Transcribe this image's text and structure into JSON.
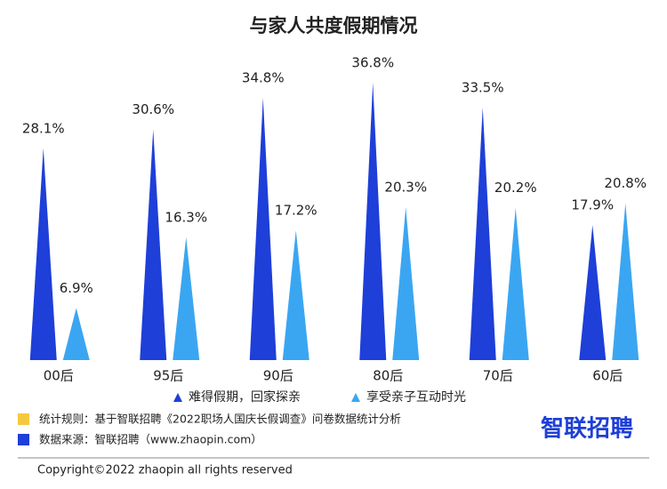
{
  "chart_data": {
    "type": "spike",
    "title": "与家人共度假期情况",
    "categories": [
      "00后",
      "95后",
      "90后",
      "80后",
      "70后",
      "60后"
    ],
    "series": [
      {
        "name": "难得假期，回家探亲",
        "color": "#1e3fd8",
        "values": [
          28.1,
          30.6,
          34.8,
          36.8,
          33.5,
          17.9
        ],
        "value_labels": [
          "28.1%",
          "30.6%",
          "34.8%",
          "36.8%",
          "33.5%",
          "17.9%"
        ]
      },
      {
        "name": "享受亲子互动时光",
        "color": "#3aa6f2",
        "values": [
          6.9,
          16.3,
          17.2,
          20.3,
          20.2,
          20.8
        ],
        "value_labels": [
          "6.9%",
          "16.3%",
          "17.2%",
          "20.3%",
          "20.2%",
          "20.8%"
        ]
      }
    ]
  },
  "notes": [
    {
      "text": "统计规则：基于智联招聘《2022职场人国庆长假调查》问卷数据统计分析",
      "color": "#f5c842"
    },
    {
      "text": "数据来源：智联招聘（www.zhaopin.com）",
      "color": "#1e3fd8"
    }
  ],
  "logo": "智联招聘",
  "copyright": "Copyright©2022 zhaopin all rights reserved"
}
